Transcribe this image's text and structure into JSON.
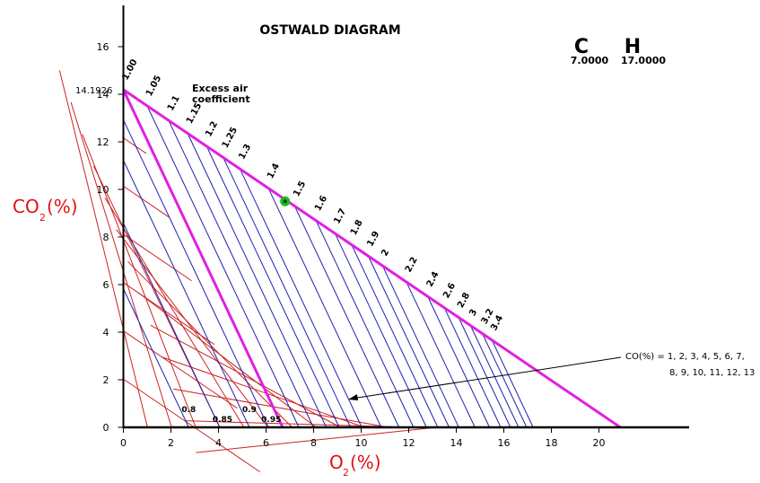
{
  "chart_data": {
    "type": "line",
    "title": "OSTWALD DIAGRAM",
    "xlabel": "O",
    "xlabel_sub": "2",
    "xlabel_unit": "(%)",
    "ylabel": "CO",
    "ylabel_sub": "2",
    "ylabel_unit": "(%)",
    "xlim": [
      0,
      24
    ],
    "ylim": [
      0,
      17
    ],
    "x_ticks": [
      0,
      2,
      4,
      6,
      8,
      10,
      12,
      14,
      16,
      18,
      20
    ],
    "y_ticks": [
      0,
      2,
      4,
      6,
      8,
      10,
      12,
      14,
      16
    ],
    "composition": {
      "c_label": "C",
      "c_value": "7.0000",
      "h_label": "H",
      "h_value": "17.0000"
    },
    "co2_max_label": "14.1926",
    "co2_max": 14.1926,
    "o2_max": 20.9,
    "stoich_o2": 6.7,
    "excess_air_title": [
      "Excess air",
      "coefficient"
    ],
    "excess_air_top_labels": [
      "1.00",
      "1.05",
      "1.1",
      "1.15",
      "1.2",
      "1.25",
      "1.3",
      "1.4",
      "1.5",
      "1.6",
      "1.7",
      "1.8",
      "1.9",
      "2",
      "2.2",
      "2.4",
      "2.6",
      "2.8",
      "3",
      "3.2",
      "3.4"
    ],
    "excess_air_top_o2": [
      0,
      1.0,
      1.9,
      2.7,
      3.5,
      4.2,
      4.9,
      6.1,
      7.2,
      8.1,
      8.9,
      9.6,
      10.3,
      10.9,
      11.9,
      12.8,
      13.5,
      14.1,
      14.6,
      15.1,
      15.5
    ],
    "excess_air_low_labels": [
      "0.8",
      "0.85",
      "0.9",
      "0.95"
    ],
    "excess_air_low_o2": [
      2.75,
      4.05,
      5.3,
      6.1
    ],
    "co_lines": [
      1,
      2,
      3,
      4,
      5,
      6,
      7,
      8,
      9,
      10,
      11,
      12,
      13
    ],
    "co_annotation": [
      "CO(%) = 1, 2, 3, 4, 5, 6, 7,",
      "8, 9, 10, 11, 12, 13"
    ],
    "operating_point": {
      "o2": 6.8,
      "co2": 9.5
    }
  },
  "colors": {
    "magenta": "#e020e0",
    "red_lines": "#cc2222",
    "blue_lines": "#2020b0",
    "axis_title": "#e01010",
    "point": "#1cbc1c",
    "point_core": "#0a4010"
  }
}
